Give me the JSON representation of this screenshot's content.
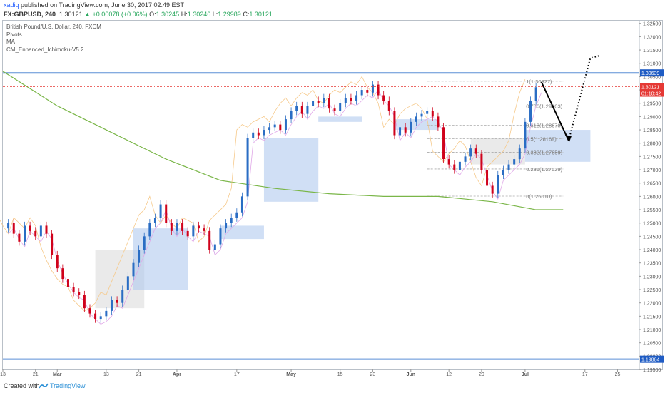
{
  "header": {
    "author": "xadiq",
    "published": "published on TradingView.com, June 30, 2017 02:49 EST"
  },
  "quote": {
    "symbol": "FX:GBPUSD, 240",
    "last": "1.30121",
    "arrow": "▲",
    "change": "+0.00078 (+0.06%)",
    "o_label": "O:",
    "o": "1.30245",
    "h_label": "H:",
    "h": "1.30246",
    "l_label": "L:",
    "l": "1.29989",
    "c_label": "C:",
    "c": "1.30121"
  },
  "legend": {
    "title": "British Pound/U.S. Dollar, 240, FXCM",
    "items": [
      "Pivots",
      "MA",
      "CM_Enhanced_Ichimoku-V5.2"
    ]
  },
  "footer": {
    "created": "Created with",
    "brand": "TradingView"
  },
  "colors": {
    "bull": "#2a6dc4",
    "bear": "#d0021b",
    "ma": "#7ab648",
    "cloud_blue": "#a9c5ec",
    "cloud_grey": "#d8d8d8",
    "orange": "#f6c98a",
    "pink": "#e0a8e8",
    "fib": "#aaaaaa",
    "hline": "#5b8fd6",
    "price_red": "#e53935",
    "price_blue": "#1f5cc4"
  },
  "chart_data": {
    "type": "candlestick",
    "ylim": [
      1.195,
      1.326
    ],
    "y_ticks": [
      "1.32500",
      "1.32000",
      "1.31500",
      "1.31000",
      "1.30500",
      "1.30000",
      "1.29500",
      "1.29000",
      "1.28500",
      "1.28000",
      "1.27500",
      "1.27000",
      "1.26500",
      "1.26000",
      "1.25500",
      "1.25000",
      "1.24500",
      "1.24000",
      "1.23500",
      "1.23000",
      "1.22500",
      "1.22000",
      "1.21500",
      "1.21000",
      "1.20500",
      "1.20000",
      "1.19500"
    ],
    "y_tick_values": [
      1.325,
      1.32,
      1.315,
      1.31,
      1.305,
      1.3,
      1.295,
      1.29,
      1.285,
      1.28,
      1.275,
      1.27,
      1.265,
      1.26,
      1.255,
      1.25,
      1.245,
      1.24,
      1.235,
      1.23,
      1.225,
      1.22,
      1.215,
      1.21,
      1.205,
      1.2,
      1.195
    ],
    "x_labels": [
      {
        "label": "13",
        "t": 0
      },
      {
        "label": "21",
        "t": 6
      },
      {
        "label": "Mar",
        "t": 10
      },
      {
        "label": "13",
        "t": 19
      },
      {
        "label": "21",
        "t": 25
      },
      {
        "label": "Apr",
        "t": 32
      },
      {
        "label": "17",
        "t": 43
      },
      {
        "label": "May",
        "t": 53
      },
      {
        "label": "15",
        "t": 62
      },
      {
        "label": "23",
        "t": 68
      },
      {
        "label": "Jun",
        "t": 75
      },
      {
        "label": "12",
        "t": 82
      },
      {
        "label": "20",
        "t": 88
      },
      {
        "label": "Jul",
        "t": 96
      },
      {
        "label": "17",
        "t": 107
      },
      {
        "label": "25",
        "t": 113
      }
    ],
    "x_range": [
      0,
      117
    ],
    "price_path": [
      [
        0,
        1.248
      ],
      [
        1,
        1.25
      ],
      [
        2,
        1.246
      ],
      [
        3,
        1.243
      ],
      [
        4,
        1.249
      ],
      [
        5,
        1.247
      ],
      [
        6,
        1.245
      ],
      [
        7,
        1.249
      ],
      [
        8,
        1.246
      ],
      [
        9,
        1.238
      ],
      [
        10,
        1.233
      ],
      [
        11,
        1.229
      ],
      [
        12,
        1.226
      ],
      [
        13,
        1.224
      ],
      [
        14,
        1.223
      ],
      [
        15,
        1.218
      ],
      [
        16,
        1.216
      ],
      [
        17,
        1.214
      ],
      [
        18,
        1.215
      ],
      [
        19,
        1.217
      ],
      [
        20,
        1.221
      ],
      [
        21,
        1.22
      ],
      [
        22,
        1.225
      ],
      [
        23,
        1.23
      ],
      [
        24,
        1.235
      ],
      [
        25,
        1.24
      ],
      [
        26,
        1.245
      ],
      [
        27,
        1.25
      ],
      [
        28,
        1.252
      ],
      [
        29,
        1.257
      ],
      [
        30,
        1.25
      ],
      [
        31,
        1.247
      ],
      [
        32,
        1.25
      ],
      [
        33,
        1.247
      ],
      [
        34,
        1.245
      ],
      [
        35,
        1.249
      ],
      [
        36,
        1.248
      ],
      [
        37,
        1.247
      ],
      [
        38,
        1.24
      ],
      [
        39,
        1.242
      ],
      [
        40,
        1.248
      ],
      [
        41,
        1.25
      ],
      [
        42,
        1.252
      ],
      [
        43,
        1.254
      ],
      [
        44,
        1.26
      ],
      [
        45,
        1.282
      ],
      [
        46,
        1.284
      ],
      [
        47,
        1.283
      ],
      [
        48,
        1.285
      ],
      [
        49,
        1.286
      ],
      [
        50,
        1.287
      ],
      [
        51,
        1.285
      ],
      [
        52,
        1.289
      ],
      [
        53,
        1.292
      ],
      [
        54,
        1.294
      ],
      [
        55,
        1.291
      ],
      [
        56,
        1.294
      ],
      [
        57,
        1.296
      ],
      [
        58,
        1.295
      ],
      [
        59,
        1.297
      ],
      [
        60,
        1.293
      ],
      [
        61,
        1.292
      ],
      [
        62,
        1.295
      ],
      [
        63,
        1.297
      ],
      [
        64,
        1.296
      ],
      [
        65,
        1.298
      ],
      [
        66,
        1.3
      ],
      [
        67,
        1.299
      ],
      [
        68,
        1.302
      ],
      [
        69,
        1.298
      ],
      [
        70,
        1.296
      ],
      [
        71,
        1.292
      ],
      [
        72,
        1.283
      ],
      [
        73,
        1.286
      ],
      [
        74,
        1.284
      ],
      [
        75,
        1.288
      ],
      [
        76,
        1.29
      ],
      [
        77,
        1.291
      ],
      [
        78,
        1.292
      ],
      [
        79,
        1.29
      ],
      [
        80,
        1.286
      ],
      [
        81,
        1.274
      ],
      [
        82,
        1.272
      ],
      [
        83,
        1.27
      ],
      [
        84,
        1.273
      ],
      [
        85,
        1.275
      ],
      [
        86,
        1.278
      ],
      [
        87,
        1.276
      ],
      [
        88,
        1.27
      ],
      [
        89,
        1.264
      ],
      [
        90,
        1.261
      ],
      [
        91,
        1.268
      ],
      [
        92,
        1.27
      ],
      [
        93,
        1.272
      ],
      [
        94,
        1.274
      ],
      [
        95,
        1.278
      ],
      [
        96,
        1.288
      ],
      [
        97,
        1.296
      ],
      [
        98,
        1.301
      ]
    ],
    "ma_path": [
      [
        0,
        1.307
      ],
      [
        10,
        1.294
      ],
      [
        20,
        1.284
      ],
      [
        30,
        1.274
      ],
      [
        40,
        1.266
      ],
      [
        50,
        1.263
      ],
      [
        60,
        1.261
      ],
      [
        70,
        1.26
      ],
      [
        80,
        1.26
      ],
      [
        90,
        1.258
      ],
      [
        98,
        1.255
      ],
      [
        103,
        1.255
      ]
    ],
    "cloud_spans": [
      {
        "from": 17,
        "to": 26,
        "top": 1.24,
        "bottom": 1.218,
        "kind": "grey"
      },
      {
        "from": 24,
        "to": 34,
        "top": 1.248,
        "bottom": 1.225,
        "kind": "blue"
      },
      {
        "from": 40,
        "to": 48,
        "top": 1.249,
        "bottom": 1.244,
        "kind": "blue"
      },
      {
        "from": 48,
        "to": 58,
        "top": 1.282,
        "bottom": 1.258,
        "kind": "blue"
      },
      {
        "from": 58,
        "to": 66,
        "top": 1.29,
        "bottom": 1.288,
        "kind": "blue"
      },
      {
        "from": 72,
        "to": 80,
        "top": 1.289,
        "bottom": 1.285,
        "kind": "blue"
      },
      {
        "from": 86,
        "to": 96,
        "top": 1.282,
        "bottom": 1.272,
        "kind": "grey"
      },
      {
        "from": 96,
        "to": 108,
        "top": 1.285,
        "bottom": 1.273,
        "kind": "blue"
      }
    ],
    "fib_levels": [
      {
        "label": "1(1.30327)",
        "value": 1.30327
      },
      {
        "label": "0.786(1.29403)",
        "value": 1.29403
      },
      {
        "label": "0.618(1.28678)",
        "value": 1.28678
      },
      {
        "label": "0.5(1.28169)",
        "value": 1.28169
      },
      {
        "label": "0.382(1.27659)",
        "value": 1.27659
      },
      {
        "label": "0.236(1.27029)",
        "value": 1.27029
      },
      {
        "label": "0(1.26010)",
        "value": 1.2601
      }
    ],
    "horizontal_lines": [
      {
        "value": 1.30639,
        "label": "1.30639"
      },
      {
        "value": 1.19884,
        "label": "1.19884"
      }
    ],
    "current_price": {
      "value": 1.30121,
      "label": "1.30121",
      "countdown": "01:10:42"
    },
    "projection_solid": [
      [
        99,
        1.303
      ],
      [
        104,
        1.281
      ]
    ],
    "projection_dotted": [
      [
        104,
        1.281
      ],
      [
        108,
        1.312
      ],
      [
        110,
        1.313
      ]
    ]
  }
}
